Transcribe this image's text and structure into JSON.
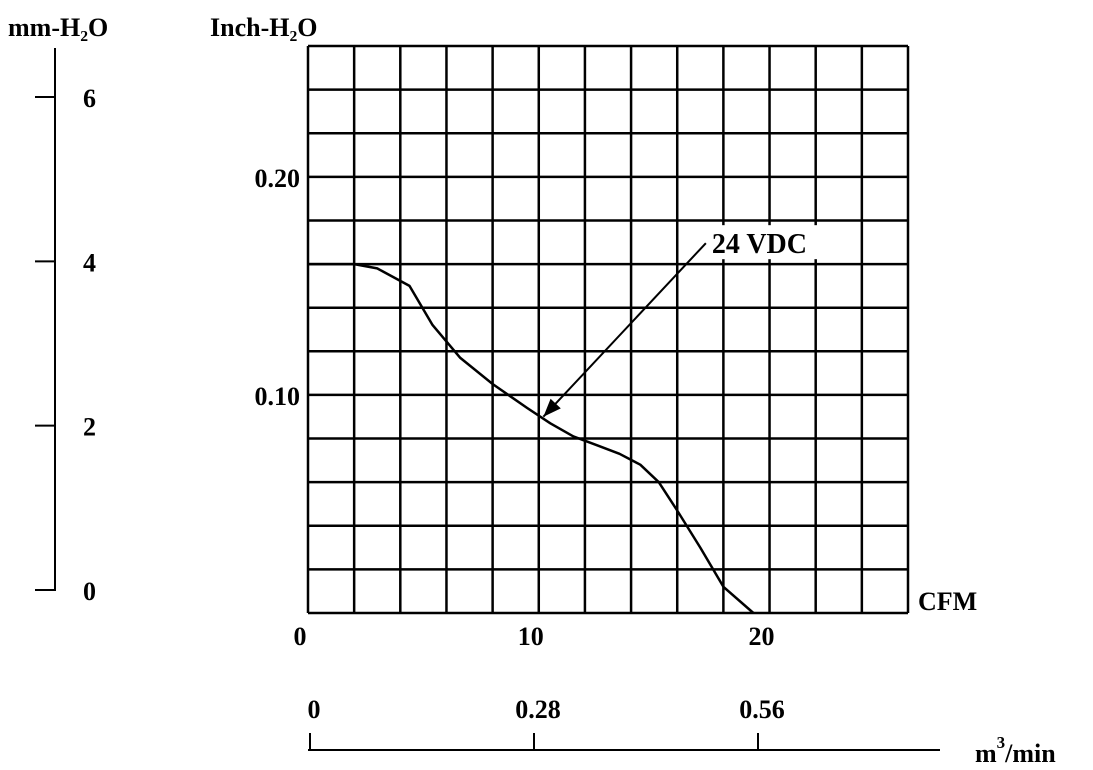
{
  "chart_data": {
    "type": "line",
    "title": "",
    "xlabel": "CFM",
    "ylabel": "Inch-H₂O",
    "xlim": [
      0,
      26
    ],
    "ylim": [
      0,
      0.26
    ],
    "grid": true,
    "x_ticks": [
      {
        "value": 0,
        "label": "0"
      },
      {
        "value": 10,
        "label": "10"
      },
      {
        "value": 20,
        "label": "20"
      }
    ],
    "y_ticks": [
      {
        "value": 0.1,
        "label": "0.10"
      },
      {
        "value": 0.2,
        "label": "0.20"
      }
    ],
    "secondary_y_axis": {
      "label": "mm-H₂O",
      "ticks": [
        {
          "value": 0,
          "label": "0"
        },
        {
          "value": 2,
          "label": "2"
        },
        {
          "value": 4,
          "label": "4"
        },
        {
          "value": 6,
          "label": "6"
        }
      ]
    },
    "secondary_x_axis": {
      "label": "m",
      "label_superscript": "3",
      "label_suffix": "/min",
      "ticks": [
        {
          "value": 0,
          "label": "0"
        },
        {
          "value": 0.28,
          "label": "0.28"
        },
        {
          "value": 0.56,
          "label": "0.56"
        }
      ]
    },
    "series": [
      {
        "name": "24 VDC",
        "x": [
          0,
          2.0,
          3.0,
          4.4,
          5.4,
          6.6,
          8.0,
          9.5,
          10.5,
          11.5,
          12.5,
          13.5,
          14.4,
          15.2,
          16.0,
          17.0,
          18.0,
          19.3
        ],
        "y": [
          0.16,
          0.16,
          0.158,
          0.15,
          0.132,
          0.117,
          0.105,
          0.094,
          0.087,
          0.081,
          0.077,
          0.073,
          0.068,
          0.06,
          0.047,
          0.03,
          0.012,
          0.0
        ]
      }
    ],
    "annotations": [
      {
        "text": "24 VDC",
        "x": 17.5,
        "y": 0.165,
        "arrow_to": [
          10.2,
          0.09
        ]
      }
    ]
  }
}
